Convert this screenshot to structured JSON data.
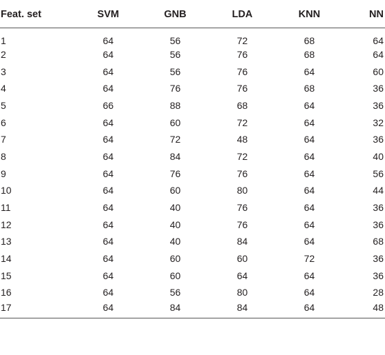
{
  "table": {
    "headers": [
      "Feat. set",
      "SVM",
      "GNB",
      "LDA",
      "KNN",
      "NN"
    ],
    "rows": [
      [
        "1",
        "64",
        "56",
        "72",
        "68",
        "64"
      ],
      [
        "2",
        "64",
        "56",
        "76",
        "68",
        "64"
      ],
      [
        "3",
        "64",
        "56",
        "76",
        "64",
        "60"
      ],
      [
        "4",
        "64",
        "76",
        "76",
        "68",
        "36"
      ],
      [
        "5",
        "66",
        "88",
        "68",
        "64",
        "36"
      ],
      [
        "6",
        "64",
        "60",
        "72",
        "64",
        "32"
      ],
      [
        "7",
        "64",
        "72",
        "48",
        "64",
        "36"
      ],
      [
        "8",
        "64",
        "84",
        "72",
        "64",
        "40"
      ],
      [
        "9",
        "64",
        "76",
        "76",
        "64",
        "56"
      ],
      [
        "10",
        "64",
        "60",
        "80",
        "64",
        "44"
      ],
      [
        "11",
        "64",
        "40",
        "76",
        "64",
        "36"
      ],
      [
        "12",
        "64",
        "40",
        "76",
        "64",
        "36"
      ],
      [
        "13",
        "64",
        "40",
        "84",
        "64",
        "68"
      ],
      [
        "14",
        "64",
        "60",
        "60",
        "72",
        "36"
      ],
      [
        "15",
        "64",
        "60",
        "64",
        "64",
        "36"
      ],
      [
        "16",
        "64",
        "56",
        "80",
        "64",
        "28"
      ],
      [
        "17",
        "64",
        "84",
        "84",
        "64",
        "48"
      ]
    ]
  }
}
